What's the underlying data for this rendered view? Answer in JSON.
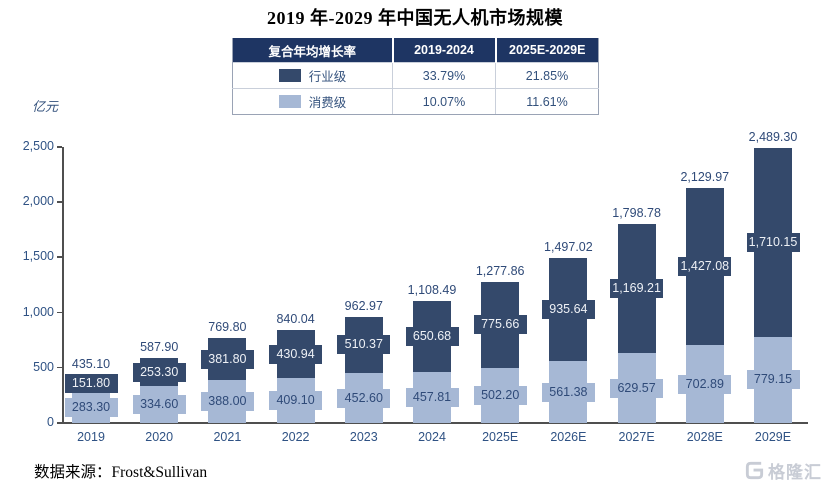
{
  "page": {
    "title": "2019 年-2029 年中国无人机市场规模",
    "unit_label": "亿元",
    "source": "数据来源：Frost&Sullivan",
    "watermark_text": "格隆汇"
  },
  "colors": {
    "industrial_bar": "#34496b",
    "consumer_bar": "#a6b8d5",
    "table_header_bg": "#1e3563",
    "axis_text": "#2f5284",
    "label_text": "#2f4a78",
    "watermark": "#c8ccd5"
  },
  "cagr_table": {
    "header": [
      "复合年均增长率",
      "2019-2024",
      "2025E-2029E"
    ],
    "rows": [
      {
        "label": "行业级",
        "swatch_color": "#34496b",
        "v1": "33.79%",
        "v2": "21.85%"
      },
      {
        "label": "消费级",
        "swatch_color": "#a6b8d5",
        "v1": "10.07%",
        "v2": "11.61%"
      }
    ]
  },
  "chart_data": {
    "type": "bar",
    "stacked": true,
    "title": "2019 年-2029 年中国无人机市场规模",
    "xlabel": "",
    "ylabel": "亿元",
    "ylim": [
      0,
      2500
    ],
    "yticks": [
      0,
      500,
      1000,
      1500,
      2000,
      2500
    ],
    "grid": false,
    "legend_position": "table-above-chart",
    "categories": [
      "2019",
      "2020",
      "2021",
      "2022",
      "2023",
      "2024",
      "2025E",
      "2026E",
      "2027E",
      "2028E",
      "2029E"
    ],
    "series": [
      {
        "name": "消费级",
        "color": "#a6b8d5",
        "values": [
          283.3,
          334.6,
          388.0,
          409.1,
          452.6,
          457.81,
          502.2,
          561.38,
          629.57,
          702.89,
          779.15
        ]
      },
      {
        "name": "行业级",
        "color": "#34496b",
        "values": [
          151.8,
          253.3,
          381.8,
          430.94,
          510.37,
          650.68,
          775.66,
          935.64,
          1169.21,
          1427.08,
          1710.15
        ]
      }
    ],
    "totals": [
      435.1,
      587.9,
      769.8,
      840.04,
      962.97,
      1108.49,
      1277.86,
      1497.02,
      1798.78,
      2129.97,
      2489.3
    ]
  }
}
